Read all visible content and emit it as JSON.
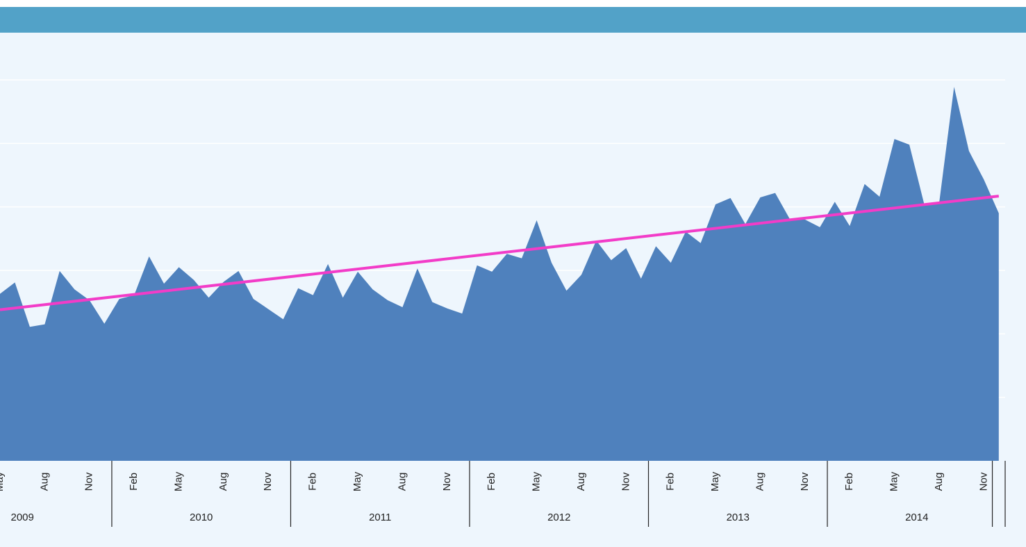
{
  "chart_data": {
    "type": "area",
    "categories": [
      "May",
      null,
      null,
      "Aug",
      null,
      null,
      "Nov",
      null,
      null,
      "Feb",
      null,
      null,
      "May",
      null,
      null,
      "Aug",
      null,
      null,
      "Nov",
      null,
      null,
      "Feb",
      null,
      null,
      "May",
      null,
      null,
      "Aug",
      null,
      null,
      "Nov",
      null,
      null,
      "Feb",
      null,
      null,
      "May",
      null,
      null,
      "Aug",
      null,
      null,
      "Nov",
      null,
      null,
      "Feb",
      null,
      null,
      "May",
      null,
      null,
      "Aug",
      null,
      null,
      "Nov",
      null,
      null,
      "Feb",
      null,
      null,
      "May",
      null,
      null,
      "Aug",
      null,
      null,
      "Nov",
      null
    ],
    "years": [
      "2009",
      "2010",
      "2011",
      "2012",
      "2013",
      "2014"
    ],
    "series": [
      {
        "color": "#4f81bd",
        "values": [
          2.63,
          2.81,
          2.11,
          2.15,
          2.99,
          2.7,
          2.53,
          2.16,
          2.55,
          2.61,
          3.22,
          2.79,
          3.05,
          2.85,
          2.57,
          2.82,
          2.99,
          2.55,
          2.39,
          2.23,
          2.72,
          2.61,
          3.1,
          2.57,
          2.98,
          2.7,
          2.53,
          2.42,
          3.03,
          2.5,
          2.4,
          2.32,
          3.08,
          2.98,
          3.26,
          3.19,
          3.79,
          3.12,
          2.68,
          2.93,
          3.47,
          3.16,
          3.35,
          2.87,
          3.38,
          3.12,
          3.61,
          3.43,
          4.04,
          4.14,
          3.73,
          4.15,
          4.22,
          3.8,
          3.8,
          3.68,
          4.08,
          3.7,
          4.36,
          4.16,
          5.07,
          4.98,
          4.04,
          4.06,
          5.89,
          4.88,
          4.43,
          3.9
        ]
      }
    ],
    "trend": {
      "color": "#f23cc8",
      "values": [
        2.38,
        4.17
      ]
    },
    "ylim": [
      0,
      6
    ],
    "yticks": [
      1,
      2,
      3,
      4,
      5,
      6
    ],
    "grid": true
  }
}
